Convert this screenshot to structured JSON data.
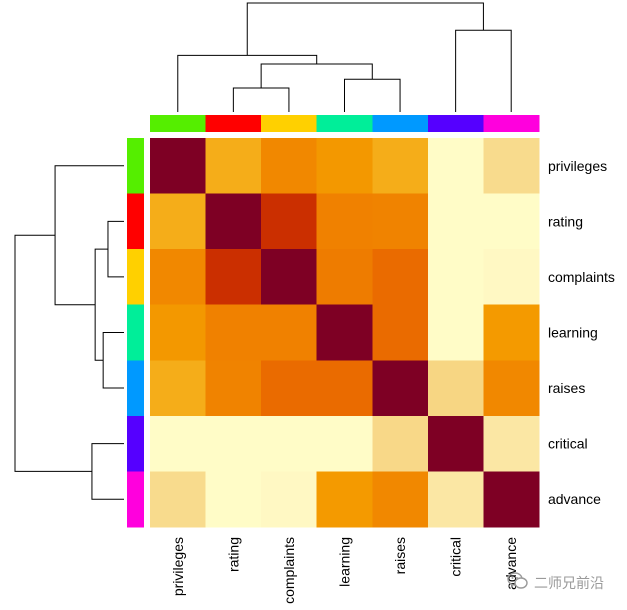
{
  "chart_data": {
    "type": "heatmap",
    "title": "",
    "row_labels": [
      "privileges",
      "rating",
      "complaints",
      "learning",
      "raises",
      "critical",
      "advance"
    ],
    "col_labels": [
      "privileges",
      "rating",
      "complaints",
      "learning",
      "raises",
      "critical",
      "advance"
    ],
    "values": [
      [
        1.0,
        0.4,
        0.55,
        0.48,
        0.4,
        0.05,
        0.25
      ],
      [
        0.4,
        1.0,
        0.83,
        0.58,
        0.57,
        0.05,
        0.05
      ],
      [
        0.55,
        0.83,
        1.0,
        0.6,
        0.67,
        0.05,
        0.1
      ],
      [
        0.48,
        0.58,
        0.58,
        1.0,
        0.67,
        0.05,
        0.47
      ],
      [
        0.4,
        0.57,
        0.67,
        0.67,
        1.0,
        0.27,
        0.55
      ],
      [
        0.05,
        0.05,
        0.05,
        0.05,
        0.26,
        1.0,
        0.2
      ],
      [
        0.25,
        0.05,
        0.1,
        0.47,
        0.55,
        0.2,
        1.0
      ]
    ],
    "value_range": [
      0,
      1
    ],
    "color_scale": [
      "#ffffcc",
      "#fff5bf",
      "#f6d27c",
      "#f5a400",
      "#f08300",
      "#e86000",
      "#c42400",
      "#7e0024"
    ],
    "group_colors": [
      "#55ee00",
      "#ff0000",
      "#ffd000",
      "#00ee99",
      "#0099ff",
      "#5500ff",
      "#ff00dd"
    ],
    "row_dendrogram": [
      {
        "left": 1,
        "right": 2,
        "height": 0.1,
        "size": 2
      },
      {
        "left": 3,
        "right": 4,
        "height": 0.13,
        "size": 2
      },
      {
        "left": -1,
        "right": -2,
        "height": 0.18,
        "size": 4
      },
      {
        "left": 0,
        "right": -3,
        "height": 0.43,
        "size": 5
      },
      {
        "left": 5,
        "right": 6,
        "height": 0.2,
        "size": 2
      },
      {
        "left": -4,
        "right": -5,
        "height": 0.68,
        "size": 7
      }
    ],
    "col_dendrogram": [
      {
        "left": 1,
        "right": 2,
        "height": 0.22,
        "size": 2
      },
      {
        "left": 3,
        "right": 4,
        "height": 0.3,
        "size": 2
      },
      {
        "left": -1,
        "right": -2,
        "height": 0.44,
        "size": 4
      },
      {
        "left": 0,
        "right": -3,
        "height": 0.52,
        "size": 5
      },
      {
        "left": 5,
        "right": 6,
        "height": 0.75,
        "size": 2
      },
      {
        "left": -4,
        "right": -5,
        "height": 1.0,
        "size": 7
      }
    ]
  },
  "watermark": {
    "text": "二师兄前沿",
    "icon": "wechat-icon"
  }
}
